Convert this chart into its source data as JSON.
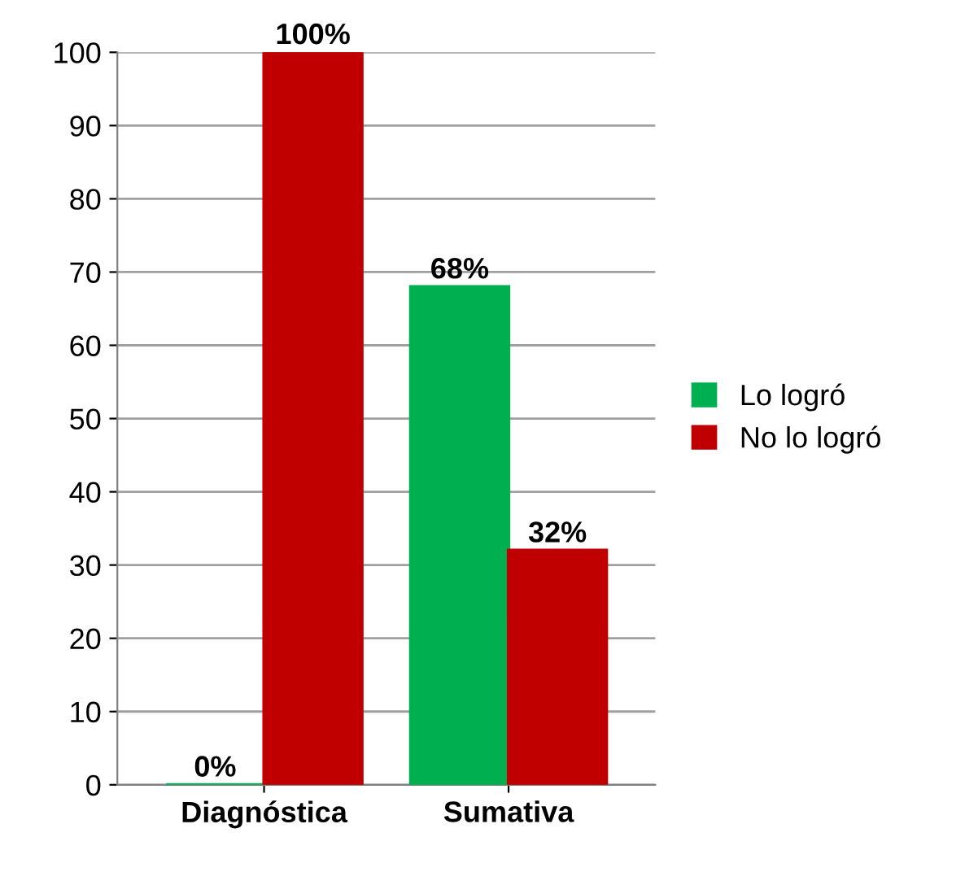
{
  "chart_data": {
    "type": "bar",
    "categories": [
      "Diagnóstica",
      "Sumativa"
    ],
    "series": [
      {
        "name": "Lo logró",
        "color": "#00b050",
        "values": [
          0,
          68
        ],
        "value_labels": [
          "0%",
          "68%"
        ]
      },
      {
        "name": "No lo logró",
        "color": "#c00000",
        "values": [
          100,
          32
        ],
        "value_labels": [
          "100%",
          "32%"
        ]
      }
    ],
    "ylim": [
      0,
      100
    ],
    "yticks": [
      0,
      10,
      20,
      30,
      40,
      50,
      60,
      70,
      80,
      90,
      100
    ],
    "grid": "y",
    "legend": "right"
  }
}
